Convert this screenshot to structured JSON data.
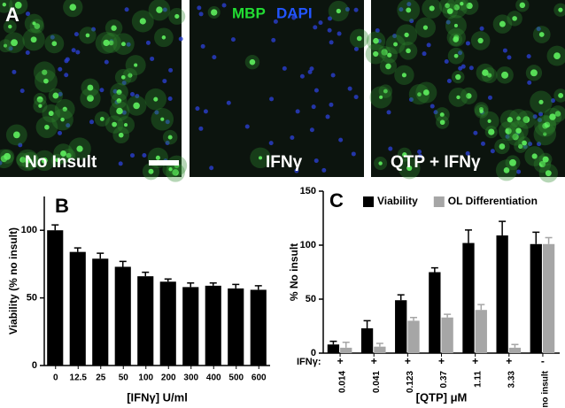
{
  "figure": {
    "label": "A",
    "stain_labels": [
      "MBP",
      "DAPI"
    ],
    "images": [
      "No Insult",
      "IFNγ",
      "QTP + IFNγ"
    ]
  },
  "chart_data": [
    {
      "type": "bar",
      "label": "B",
      "x_label": "[IFNγ] U/ml",
      "y_label": "Viability (% no insult)",
      "categories": [
        "0",
        "12.5",
        "25",
        "50",
        "100",
        "200",
        "300",
        "400",
        "500",
        "600"
      ],
      "values": [
        100,
        84,
        79,
        73,
        66,
        62,
        58,
        59,
        57,
        56
      ],
      "errors": [
        4,
        3,
        4,
        4,
        3,
        2,
        3,
        2,
        3,
        3
      ],
      "color": "#000000",
      "ylim": [
        0,
        125
      ],
      "yticks": [
        0,
        50,
        100
      ]
    },
    {
      "type": "bar",
      "label": "C",
      "x_label": "[QTP] μM",
      "y_label": "% No insult",
      "row_label": "IFNγ:",
      "row_values": [
        "+",
        "+",
        "+",
        "+",
        "+",
        "+",
        "-"
      ],
      "categories": [
        "0.014",
        "0.041",
        "0.123",
        "0.37",
        "1.11",
        "3.33",
        "no insult"
      ],
      "series": [
        {
          "name": "Viability",
          "color": "#000000",
          "values": [
            8,
            23,
            49,
            75,
            102,
            109,
            101
          ],
          "errors": [
            3,
            7,
            5,
            4,
            12,
            13,
            11
          ]
        },
        {
          "name": "OL Differentiation",
          "color": "#a6a6a6",
          "values": [
            5,
            6,
            30,
            33,
            40,
            5,
            101
          ],
          "errors": [
            5,
            3,
            3,
            3,
            5,
            3,
            6
          ]
        }
      ],
      "ylim": [
        0,
        150
      ],
      "yticks": [
        0,
        50,
        100,
        150
      ],
      "legend": "top"
    }
  ]
}
